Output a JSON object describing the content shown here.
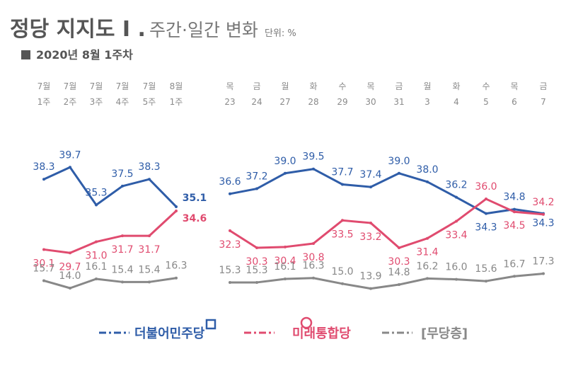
{
  "title": {
    "main": "정당 지지도 I .",
    "sub": "주간·일간 변화",
    "unit": "단위: %"
  },
  "subtitle": "2020년 8월 1주차",
  "colors": {
    "minjoo": "#2f5da8",
    "tonghap": "#e04b6f",
    "none": "#888888"
  },
  "chart_data": {
    "type": "line",
    "segments": [
      {
        "name": "weekly",
        "categories": [
          {
            "top": "7월",
            "bottom": "1주"
          },
          {
            "top": "7월",
            "bottom": "2주"
          },
          {
            "top": "7월",
            "bottom": "3주"
          },
          {
            "top": "7월",
            "bottom": "4주"
          },
          {
            "top": "7월",
            "bottom": "5주"
          },
          {
            "top": "8월",
            "bottom": "1주"
          }
        ]
      },
      {
        "name": "daily",
        "categories": [
          {
            "top": "목",
            "bottom": "23"
          },
          {
            "top": "금",
            "bottom": "24"
          },
          {
            "top": "월",
            "bottom": "27"
          },
          {
            "top": "화",
            "bottom": "28"
          },
          {
            "top": "수",
            "bottom": "29"
          },
          {
            "top": "목",
            "bottom": "30"
          },
          {
            "top": "금",
            "bottom": "31"
          },
          {
            "top": "월",
            "bottom": "3"
          },
          {
            "top": "화",
            "bottom": "4"
          },
          {
            "top": "수",
            "bottom": "5"
          },
          {
            "top": "목",
            "bottom": "6"
          },
          {
            "top": "금",
            "bottom": "7"
          }
        ]
      }
    ],
    "series": [
      {
        "name": "더불어민주당",
        "color": "#2f5da8",
        "weekly": [
          38.3,
          39.7,
          35.3,
          37.5,
          38.3,
          35.1
        ],
        "daily": [
          36.6,
          37.2,
          39.0,
          39.5,
          37.7,
          37.4,
          39.0,
          38.0,
          36.2,
          34.3,
          34.8,
          34.3
        ]
      },
      {
        "name": "미래통합당",
        "color": "#e04b6f",
        "weekly": [
          30.1,
          29.7,
          31.0,
          31.7,
          31.7,
          34.6
        ],
        "daily": [
          32.3,
          30.3,
          30.4,
          30.8,
          33.5,
          33.2,
          30.3,
          31.4,
          33.4,
          36.0,
          34.5,
          34.2
        ]
      },
      {
        "name": "[무당층]",
        "color": "#888888",
        "weekly": [
          15.7,
          14.0,
          16.1,
          15.4,
          15.4,
          16.3
        ],
        "daily": [
          15.3,
          15.3,
          16.1,
          16.3,
          15.0,
          13.9,
          14.8,
          16.2,
          16.0,
          15.6,
          16.7,
          17.3
        ]
      }
    ]
  }
}
